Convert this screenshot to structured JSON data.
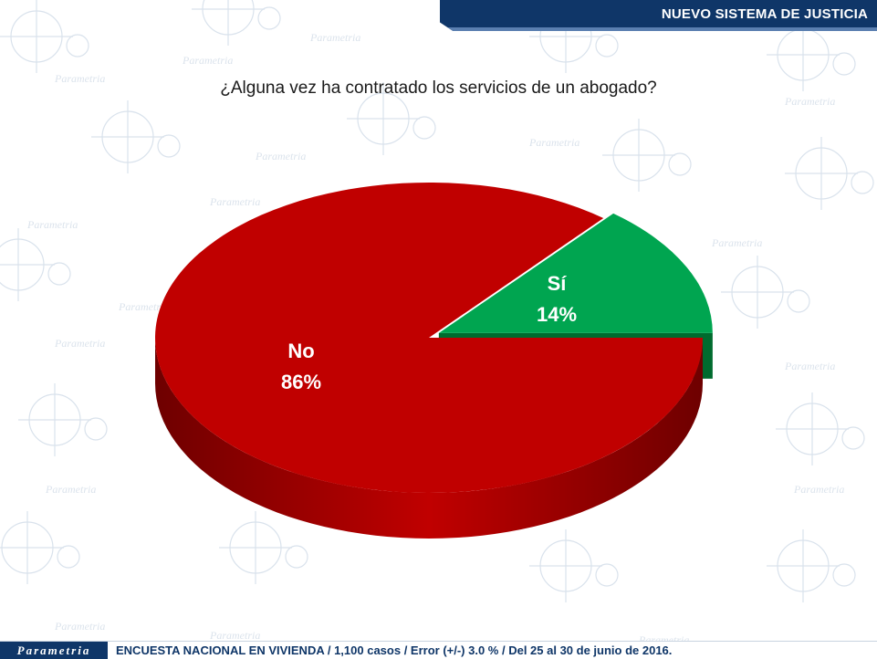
{
  "header": {
    "title": "NUEVO SISTEMA DE JUSTICIA"
  },
  "question": "¿Alguna vez ha contratado los servicios de un abogado?",
  "chart_data": {
    "type": "pie",
    "title": "¿Alguna vez ha contratado los servicios de un abogado?",
    "slices": [
      {
        "label": "Sí",
        "value": 14,
        "display": "14%",
        "color": "#00a550",
        "side_color": "#006b2e",
        "exploded": true
      },
      {
        "label": "No",
        "value": 86,
        "display": "86%",
        "color": "#c00000",
        "side_color": "#6e0000",
        "exploded": false
      }
    ]
  },
  "footer": {
    "logo": "Parametria",
    "text": "ENCUESTA NACIONAL EN VIVIENDA / 1,100 casos / Error (+/-) 3.0 % / Del 25 al 30 de junio de 2016."
  },
  "watermark": "Parametria"
}
